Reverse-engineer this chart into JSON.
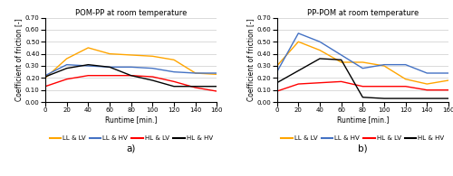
{
  "title_a": "POM-PP at room temperature",
  "title_b": "PP-POM at room temperature",
  "xlabel": "Runtime [min.]",
  "ylabel": "Coefficient of friction [-]",
  "label_a": "a)",
  "label_b": "b)",
  "ylim": [
    0.0,
    0.7
  ],
  "yticks": [
    0.0,
    0.1,
    0.2,
    0.3,
    0.4,
    0.5,
    0.6,
    0.7
  ],
  "xlim": [
    0,
    160
  ],
  "xticks": [
    0,
    20,
    40,
    60,
    80,
    100,
    120,
    140,
    160
  ],
  "legend_labels": [
    "LL & LV",
    "LL & HV",
    "HL & LV",
    "HL & HV"
  ],
  "colors": [
    "#FFA500",
    "#4472C4",
    "#FF0000",
    "#000000"
  ],
  "chart_a": {
    "LL_LV": {
      "x": [
        0,
        20,
        40,
        60,
        80,
        100,
        120,
        140,
        160
      ],
      "y": [
        0.2,
        0.36,
        0.45,
        0.4,
        0.39,
        0.38,
        0.35,
        0.24,
        0.23
      ]
    },
    "LL_HV": {
      "x": [
        0,
        20,
        40,
        60,
        80,
        100,
        120,
        140,
        160
      ],
      "y": [
        0.22,
        0.31,
        0.3,
        0.29,
        0.29,
        0.28,
        0.25,
        0.24,
        0.24
      ]
    },
    "HL_LV": {
      "x": [
        0,
        20,
        40,
        60,
        80,
        100,
        120,
        140,
        160
      ],
      "y": [
        0.13,
        0.19,
        0.22,
        0.22,
        0.22,
        0.21,
        0.17,
        0.12,
        0.09
      ]
    },
    "HL_HV": {
      "x": [
        0,
        20,
        40,
        60,
        80,
        100,
        120,
        140,
        160
      ],
      "y": [
        0.21,
        0.28,
        0.31,
        0.29,
        0.22,
        0.18,
        0.13,
        0.13,
        0.13
      ]
    }
  },
  "chart_b": {
    "LL_LV": {
      "x": [
        0,
        20,
        40,
        60,
        80,
        100,
        120,
        140,
        160
      ],
      "y": [
        0.3,
        0.5,
        0.43,
        0.33,
        0.33,
        0.3,
        0.19,
        0.15,
        0.18
      ]
    },
    "LL_HV": {
      "x": [
        0,
        20,
        40,
        60,
        80,
        100,
        120,
        140,
        160
      ],
      "y": [
        0.25,
        0.57,
        0.5,
        0.39,
        0.28,
        0.31,
        0.31,
        0.24,
        0.24
      ]
    },
    "HL_LV": {
      "x": [
        0,
        20,
        40,
        60,
        80,
        100,
        120,
        140,
        160
      ],
      "y": [
        0.09,
        0.15,
        0.16,
        0.17,
        0.13,
        0.13,
        0.13,
        0.1,
        0.1
      ]
    },
    "HL_HV": {
      "x": [
        0,
        20,
        40,
        60,
        80,
        100,
        120,
        140,
        160
      ],
      "y": [
        0.16,
        0.26,
        0.36,
        0.35,
        0.04,
        0.03,
        0.03,
        0.03,
        0.03
      ]
    }
  }
}
